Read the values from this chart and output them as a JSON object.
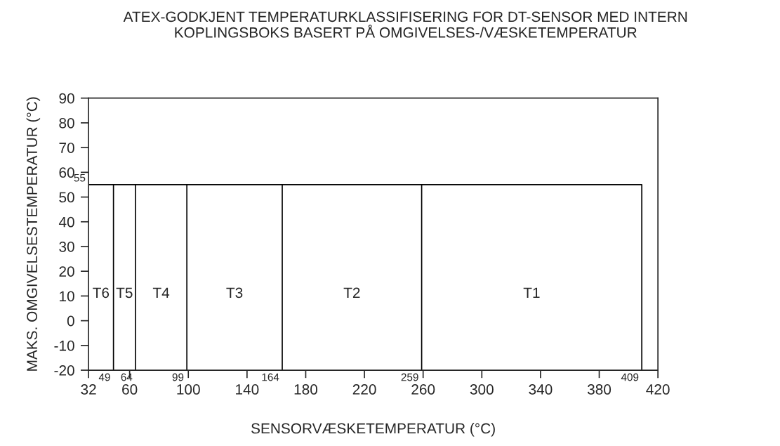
{
  "chart_data": {
    "type": "line",
    "title": "ATEX-GODKJENT TEMPERATURKLASSIFISERING FOR DT-SENSOR MED INTERN\nKOPLINGSBOKS BASERT PÅ OMGIVELSES-/VÆSKETEMPERATUR",
    "xlabel": "SENSORVÆSKETEMPERATUR (°C)",
    "ylabel": "MAKS. OMGIVELSESTEMPERATUR (°C)",
    "series": [
      {
        "color": "#000000",
        "x": [
          32,
          409,
          409
        ],
        "values": [
          55,
          55,
          -20
        ]
      },
      {
        "color": "#000000",
        "x": [
          49,
          49
        ],
        "values": [
          -20,
          55
        ]
      },
      {
        "color": "#000000",
        "x": [
          64,
          64
        ],
        "values": [
          -20,
          55
        ]
      },
      {
        "color": "#000000",
        "x": [
          99,
          99
        ],
        "values": [
          -20,
          55
        ]
      },
      {
        "color": "#000000",
        "x": [
          164,
          164
        ],
        "values": [
          -20,
          55
        ]
      },
      {
        "color": "#000000",
        "x": [
          259,
          259
        ],
        "values": [
          -20,
          55
        ]
      }
    ],
    "annotations": [
      "T6",
      "T5",
      "T4",
      "T3",
      "T2",
      "T1",
      {
        "text": "55",
        "x": 32,
        "y": 55
      },
      {
        "text": "49",
        "x": 49,
        "y": -20
      },
      {
        "text": "64",
        "x": 64,
        "y": -20
      },
      {
        "text": "99",
        "x": 99,
        "y": -20
      },
      {
        "text": "164",
        "x": 164,
        "y": -20
      },
      {
        "text": "259",
        "x": 259,
        "y": -20
      },
      {
        "text": "409",
        "x": 409,
        "y": -20
      }
    ],
    "xlim": [
      32,
      420
    ],
    "xticks": [
      32,
      60,
      100,
      140,
      180,
      220,
      260,
      300,
      340,
      380,
      420
    ],
    "ylim": [
      -20,
      90
    ],
    "yticks": [
      -20,
      -10,
      0,
      10,
      20,
      30,
      40,
      50,
      60,
      70,
      80,
      90
    ],
    "grid": false,
    "legend": false,
    "marker": "none",
    "line_style": "solid"
  }
}
